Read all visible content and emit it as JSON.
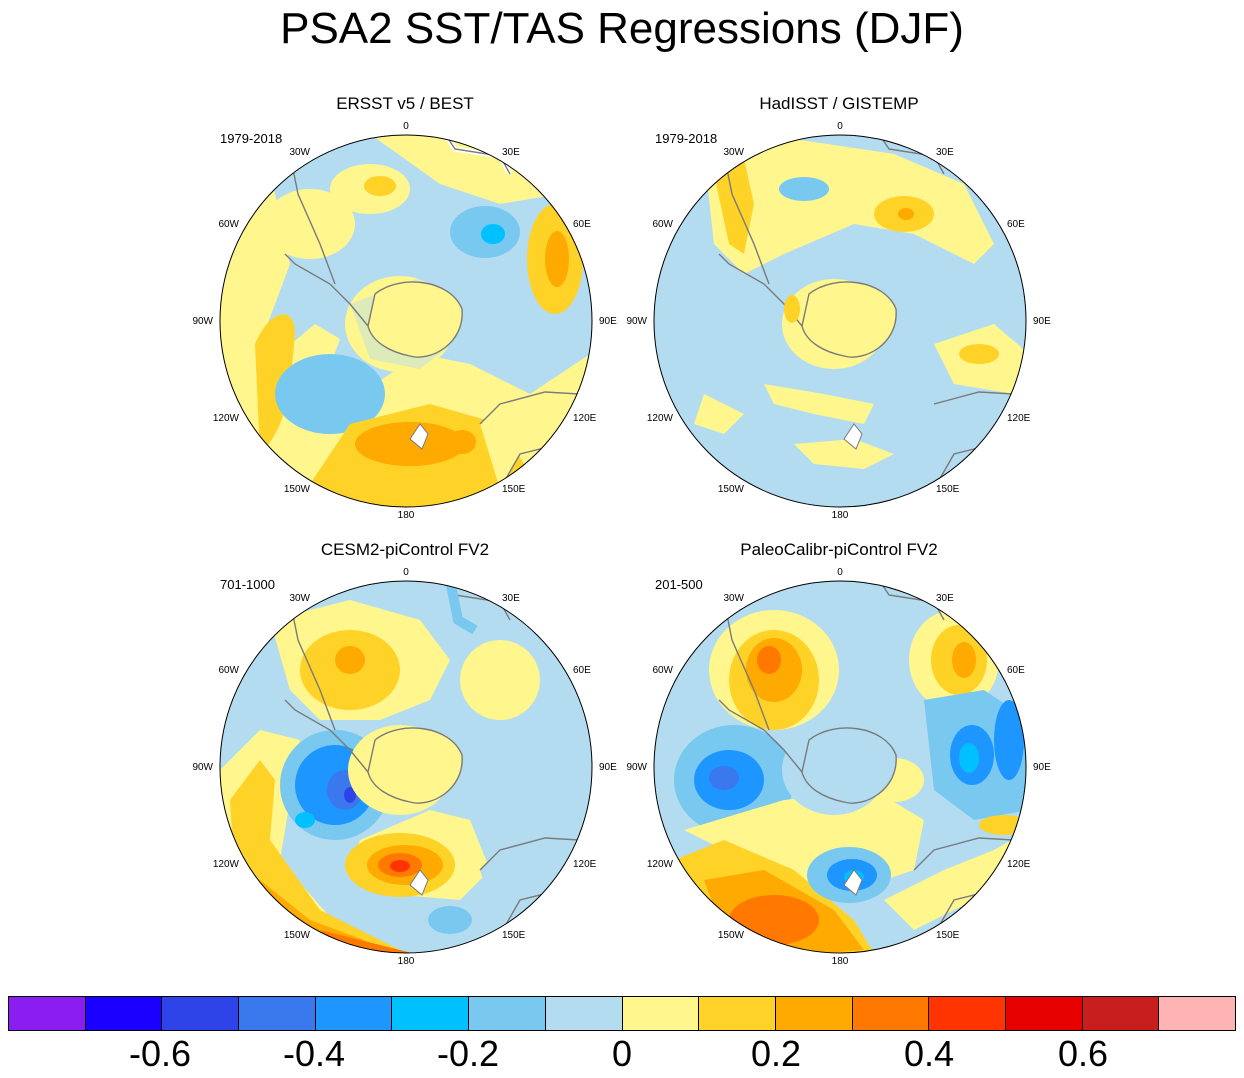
{
  "title": "PSA2 SST/TAS Regressions (DJF)",
  "longitude_labels": [
    "0",
    "30E",
    "60E",
    "90E",
    "120E",
    "150E",
    "180",
    "150W",
    "120W",
    "90W",
    "60W",
    "30W"
  ],
  "panels": [
    {
      "title": "ERSST v5 / BEST",
      "period": "1979-2018"
    },
    {
      "title": "HadISST / GISTEMP",
      "period": "1979-2018"
    },
    {
      "title": "CESM2-piControl FV2",
      "period": "701-1000"
    },
    {
      "title": "PaleoCalibr-piControl FV2",
      "period": "201-500"
    }
  ],
  "colorbar": {
    "colors": [
      "#8a1ef0",
      "#1a00ff",
      "#2e44e8",
      "#3a78ee",
      "#1e96ff",
      "#00c0ff",
      "#78c8f0",
      "#b4dcf0",
      "#fff68e",
      "#ffd228",
      "#ffaa00",
      "#ff7800",
      "#ff3400",
      "#e60000",
      "#c81e1e",
      "#ffb4b4"
    ],
    "tick_labels": [
      "-0.6",
      "-0.4",
      "-0.2",
      "0",
      "0.2",
      "0.4",
      "0.6"
    ]
  },
  "colors": {
    "continent_outline": "#7a7a7a",
    "background": "#ffffff"
  }
}
